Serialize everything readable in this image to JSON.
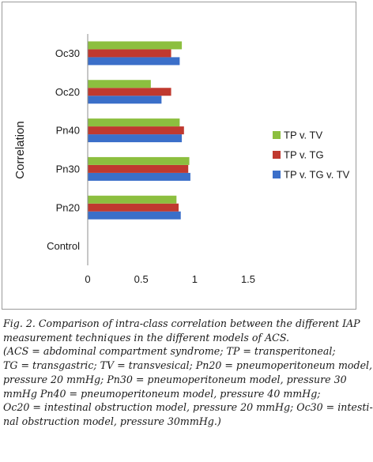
{
  "chart_data": {
    "type": "bar",
    "orientation": "horizontal",
    "categories": [
      "Control",
      "Pn20",
      "Pn30",
      "Pn40",
      "Oc20",
      "Oc30"
    ],
    "series": [
      {
        "name": "TP v. TG v. TV",
        "color": "#3b6fc9",
        "values": [
          0,
          0.87,
          0.96,
          0.88,
          0.69,
          0.86
        ]
      },
      {
        "name": "TP v. TG",
        "color": "#c0392f",
        "values": [
          0,
          0.85,
          0.94,
          0.9,
          0.78,
          0.78
        ]
      },
      {
        "name": "TP v. TV",
        "color": "#8cbf3f",
        "values": [
          0,
          0.83,
          0.95,
          0.86,
          0.59,
          0.88
        ]
      }
    ],
    "legend_order": [
      "TP v. TV",
      "TP v. TG",
      "TP v. TG v. TV"
    ],
    "xlim": [
      0,
      1.5
    ],
    "xticks": [
      "0",
      "0.5",
      "1",
      "1.5"
    ],
    "ylabel": "Correlation",
    "xlabel": "",
    "grid": false,
    "legend_position": "right"
  },
  "caption": {
    "lines": [
      "Fig. 2. Comparison of intra-class correlation between the different IAP",
      "measurement techniques in the different models of ACS.",
      "(ACS = abdominal compartment syndrome; TP = transperitoneal;",
      "TG = transgastric; TV = transvesical; Pn20 = pneumoperitoneum model,",
      "pressure 20 mmHg; Pn30 = pneumoperitoneum model, pressure 30",
      "mmHg Pn40 = pneumoperitoneum model, pressure 40 mmHg;",
      "Oc20 = intestinal obstruction model, pressure 20 mmHg; Oc30 =  intesti-",
      "nal obstruction model, pressure 30mmHg.)"
    ]
  }
}
